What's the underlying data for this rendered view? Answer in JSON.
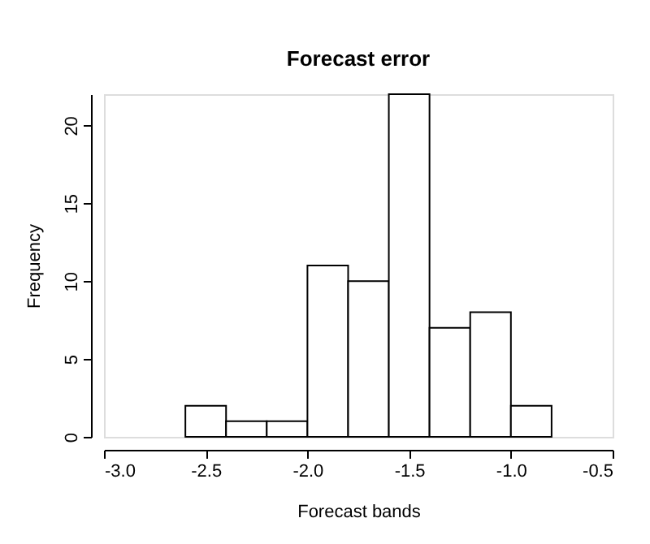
{
  "chart_data": {
    "type": "histogram",
    "title": "Forecast error",
    "xlabel": "Forecast bands",
    "ylabel": "Frequency",
    "bins": [
      -2.6,
      -2.4,
      -2.2,
      -2.0,
      -1.8,
      -1.6,
      -1.4,
      -1.2,
      -1.0,
      -0.8
    ],
    "values": [
      2,
      1,
      1,
      11,
      10,
      22,
      7,
      8,
      2
    ],
    "color": "#ffffff",
    "xlim": [
      -3.0,
      -0.5
    ],
    "xticks": [
      {
        "value": -3,
        "label": "-3.0"
      },
      {
        "value": -2.5,
        "label": "-2.5"
      },
      {
        "value": -2,
        "label": "-2.0"
      },
      {
        "value": -1.5,
        "label": "-1.5"
      },
      {
        "value": -1,
        "label": "-1.0"
      },
      {
        "value": -0.5,
        "label": "-0.5"
      }
    ],
    "ylim": [
      0,
      22
    ],
    "yticks": [
      0,
      5,
      10,
      15,
      20
    ],
    "grid": false
  }
}
